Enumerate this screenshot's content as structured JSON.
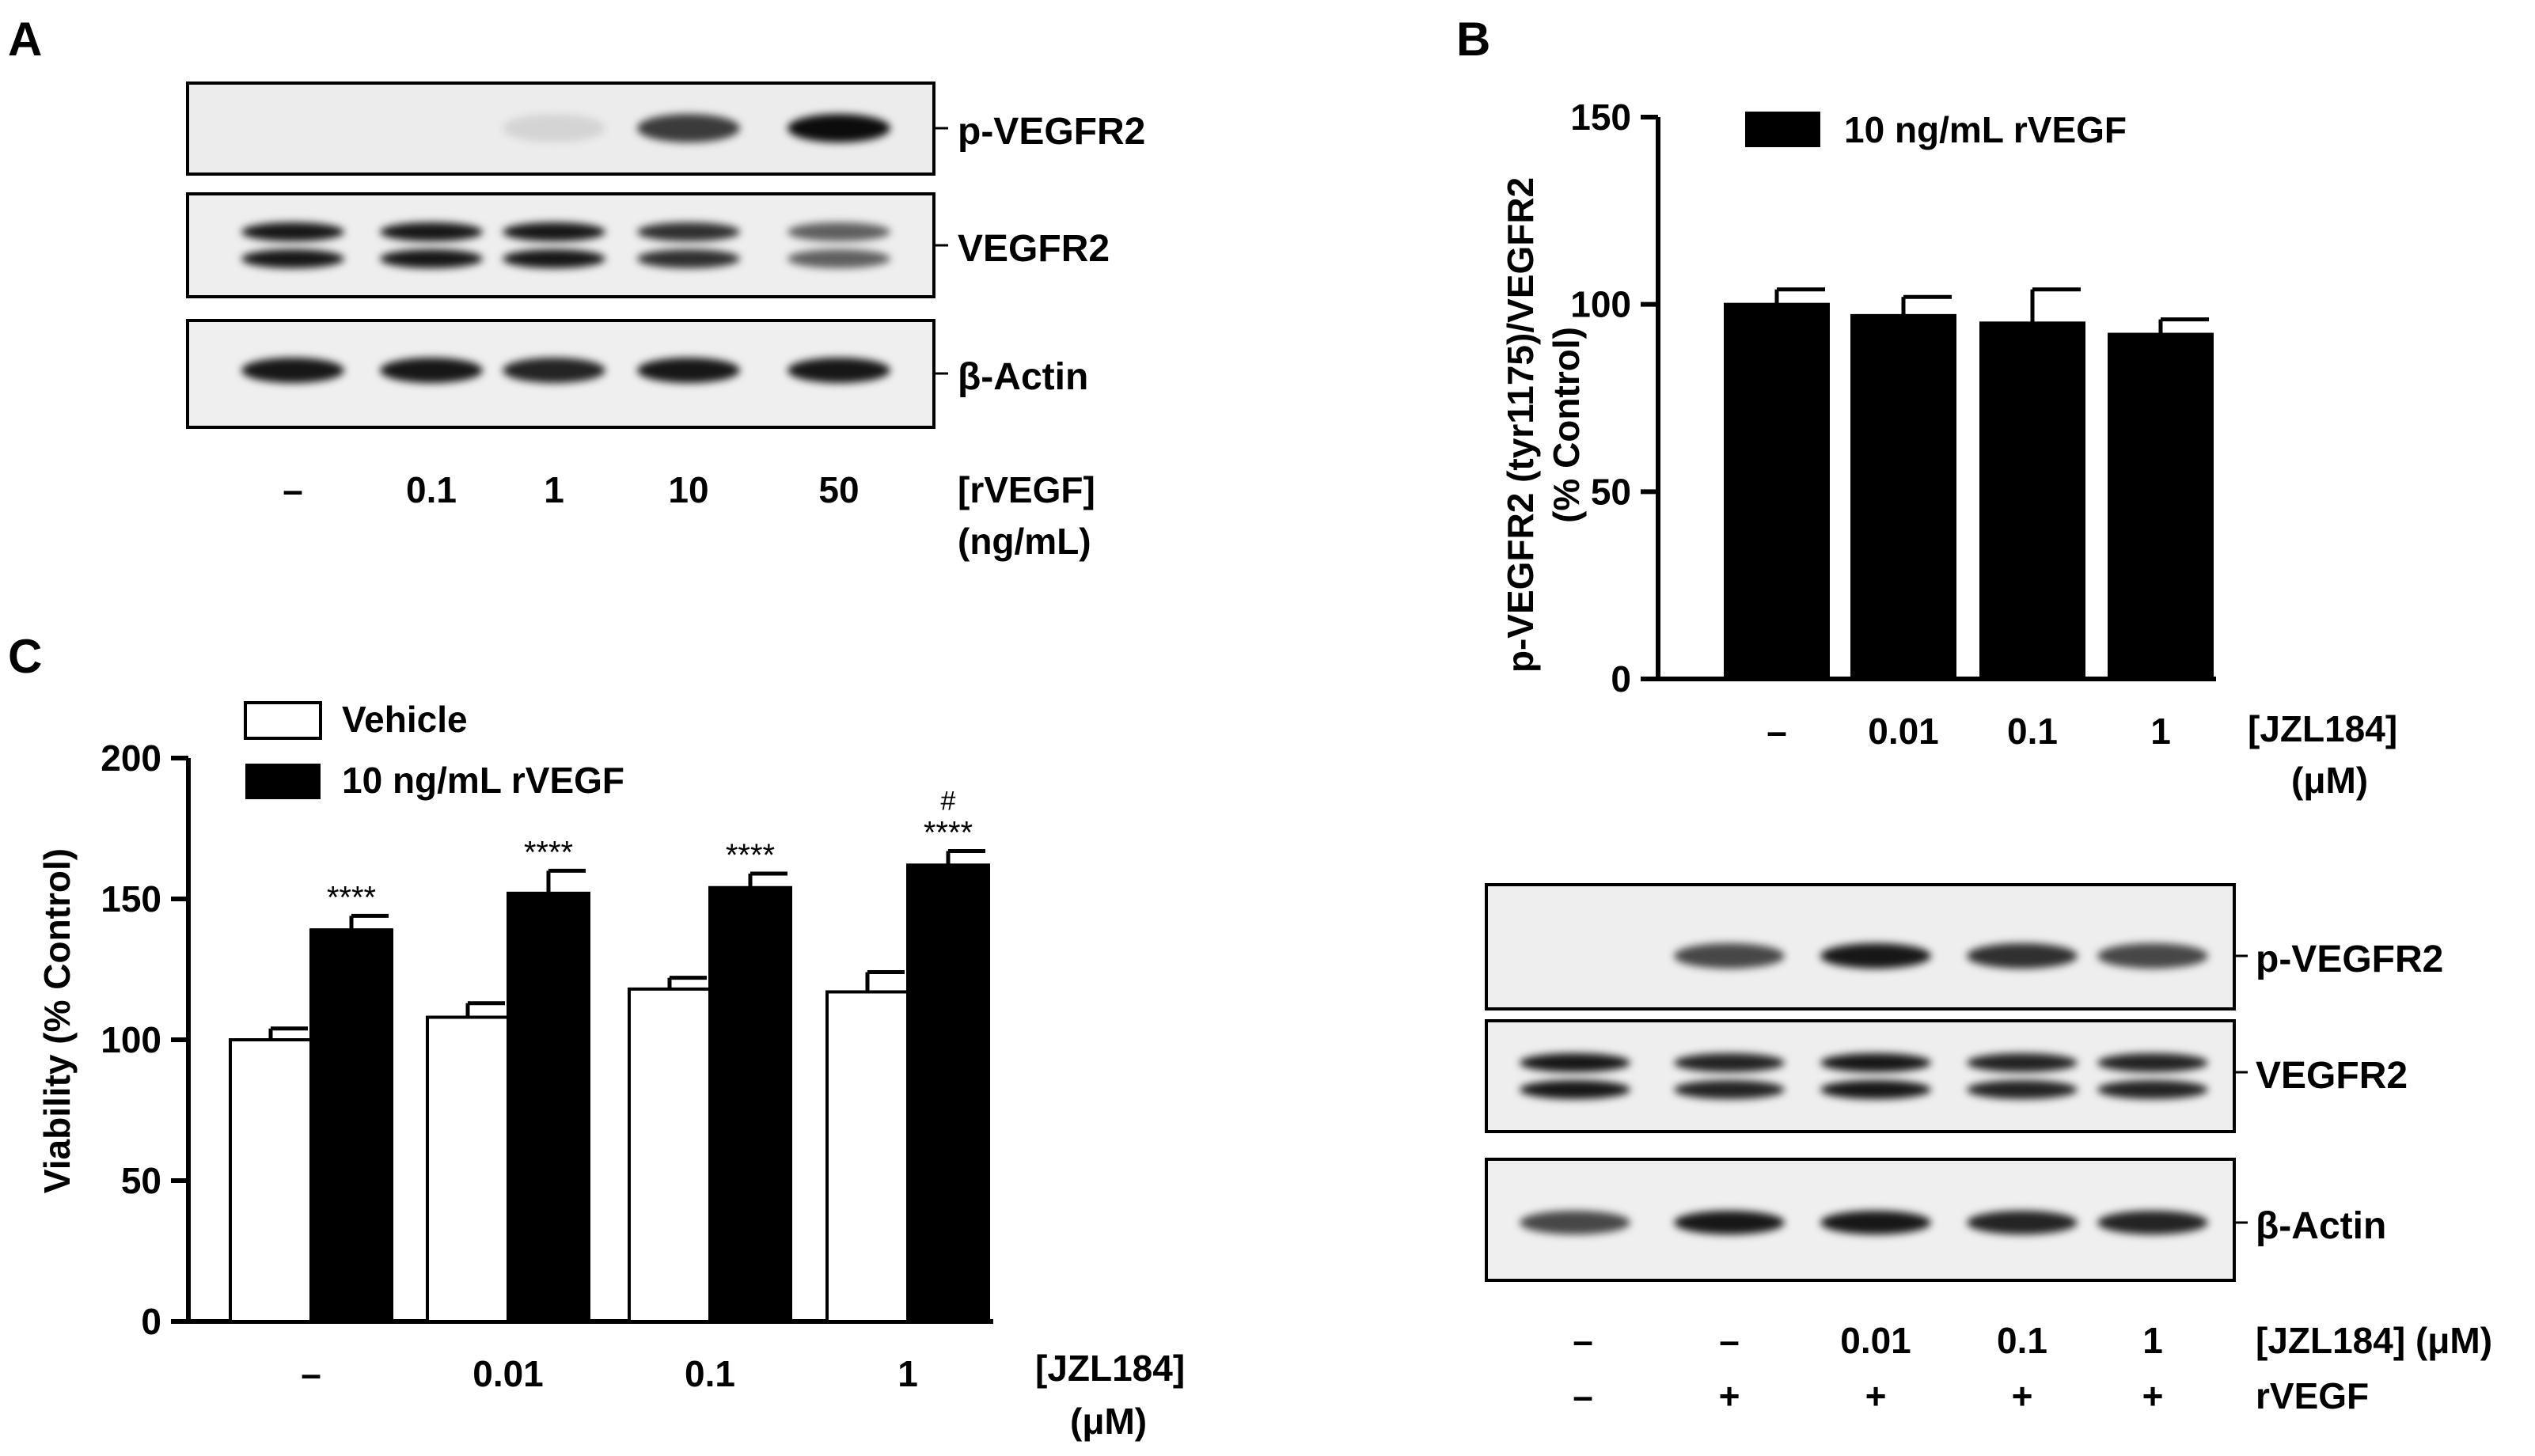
{
  "panels": {
    "a": {
      "letter": "A",
      "blot_labels": [
        "p-VEGFR2",
        "VEGFR2",
        "β-Actin"
      ],
      "lane_labels": [
        "–",
        "0.1",
        "1",
        "10",
        "50"
      ],
      "axis_label_line1": "[rVEGF]",
      "axis_label_line2": "(ng/mL)",
      "band_intensity": {
        "p-VEGFR2": [
          0.0,
          0.0,
          0.1,
          0.75,
          0.95
        ],
        "VEGFR2": [
          0.9,
          0.9,
          0.9,
          0.8,
          0.6
        ],
        "β-Actin": [
          0.9,
          0.9,
          0.85,
          0.9,
          0.9
        ]
      }
    },
    "b": {
      "letter": "B",
      "blot_labels": [
        "p-VEGFR2",
        "VEGFR2",
        "β-Actin"
      ],
      "lane_row1": [
        "–",
        "–",
        "0.01",
        "0.1",
        "1"
      ],
      "lane_row2": [
        "–",
        "+",
        "+",
        "+",
        "+"
      ],
      "row1_label": "[JZL184] (μM)",
      "row2_label": "rVEGF",
      "band_intensity": {
        "p-VEGFR2": [
          0.0,
          0.7,
          0.9,
          0.8,
          0.7
        ],
        "VEGFR2": [
          0.9,
          0.85,
          0.9,
          0.85,
          0.85
        ],
        "β-Actin": [
          0.7,
          0.9,
          0.9,
          0.85,
          0.85
        ]
      }
    },
    "c": {
      "letter": "C"
    }
  },
  "chart_data": [
    {
      "type": "bar",
      "panel": "B",
      "categories": [
        "–",
        "0.01",
        "0.1",
        "1"
      ],
      "series": [
        {
          "name": "10 ng/mL rVEGF",
          "values": [
            100,
            97,
            95,
            92
          ],
          "errors": [
            4,
            5,
            9,
            4
          ],
          "color": "#000000"
        }
      ],
      "xlabel_line1": "[JZL184]",
      "xlabel_line2": "(μM)",
      "ylabel_line1": "p-VEGFR2 (tyr1175)/VEGFR2",
      "ylabel_line2": "(% Control)",
      "ylim": [
        0,
        150
      ],
      "yticks": [
        "0",
        "50",
        "100",
        "150"
      ],
      "legend_position": "top-left"
    },
    {
      "type": "bar",
      "panel": "C",
      "categories": [
        "–",
        "0.01",
        "0.1",
        "1"
      ],
      "series": [
        {
          "name": "Vehicle",
          "values": [
            100,
            108,
            118,
            117
          ],
          "errors": [
            4,
            5,
            4,
            7
          ],
          "color": "#ffffff"
        },
        {
          "name": "10 ng/mL rVEGF",
          "values": [
            139,
            152,
            154,
            162
          ],
          "errors": [
            5,
            8,
            5,
            5
          ],
          "color": "#000000"
        }
      ],
      "annotations": [
        "****",
        "****",
        "****",
        "****",
        "#"
      ],
      "xlabel_line1": "[JZL184]",
      "xlabel_line2": "(μM)",
      "ylabel": "Viability (% Control)",
      "ylim": [
        0,
        200
      ],
      "yticks": [
        "0",
        "50",
        "100",
        "150",
        "200"
      ],
      "legend_position": "top-left"
    }
  ]
}
